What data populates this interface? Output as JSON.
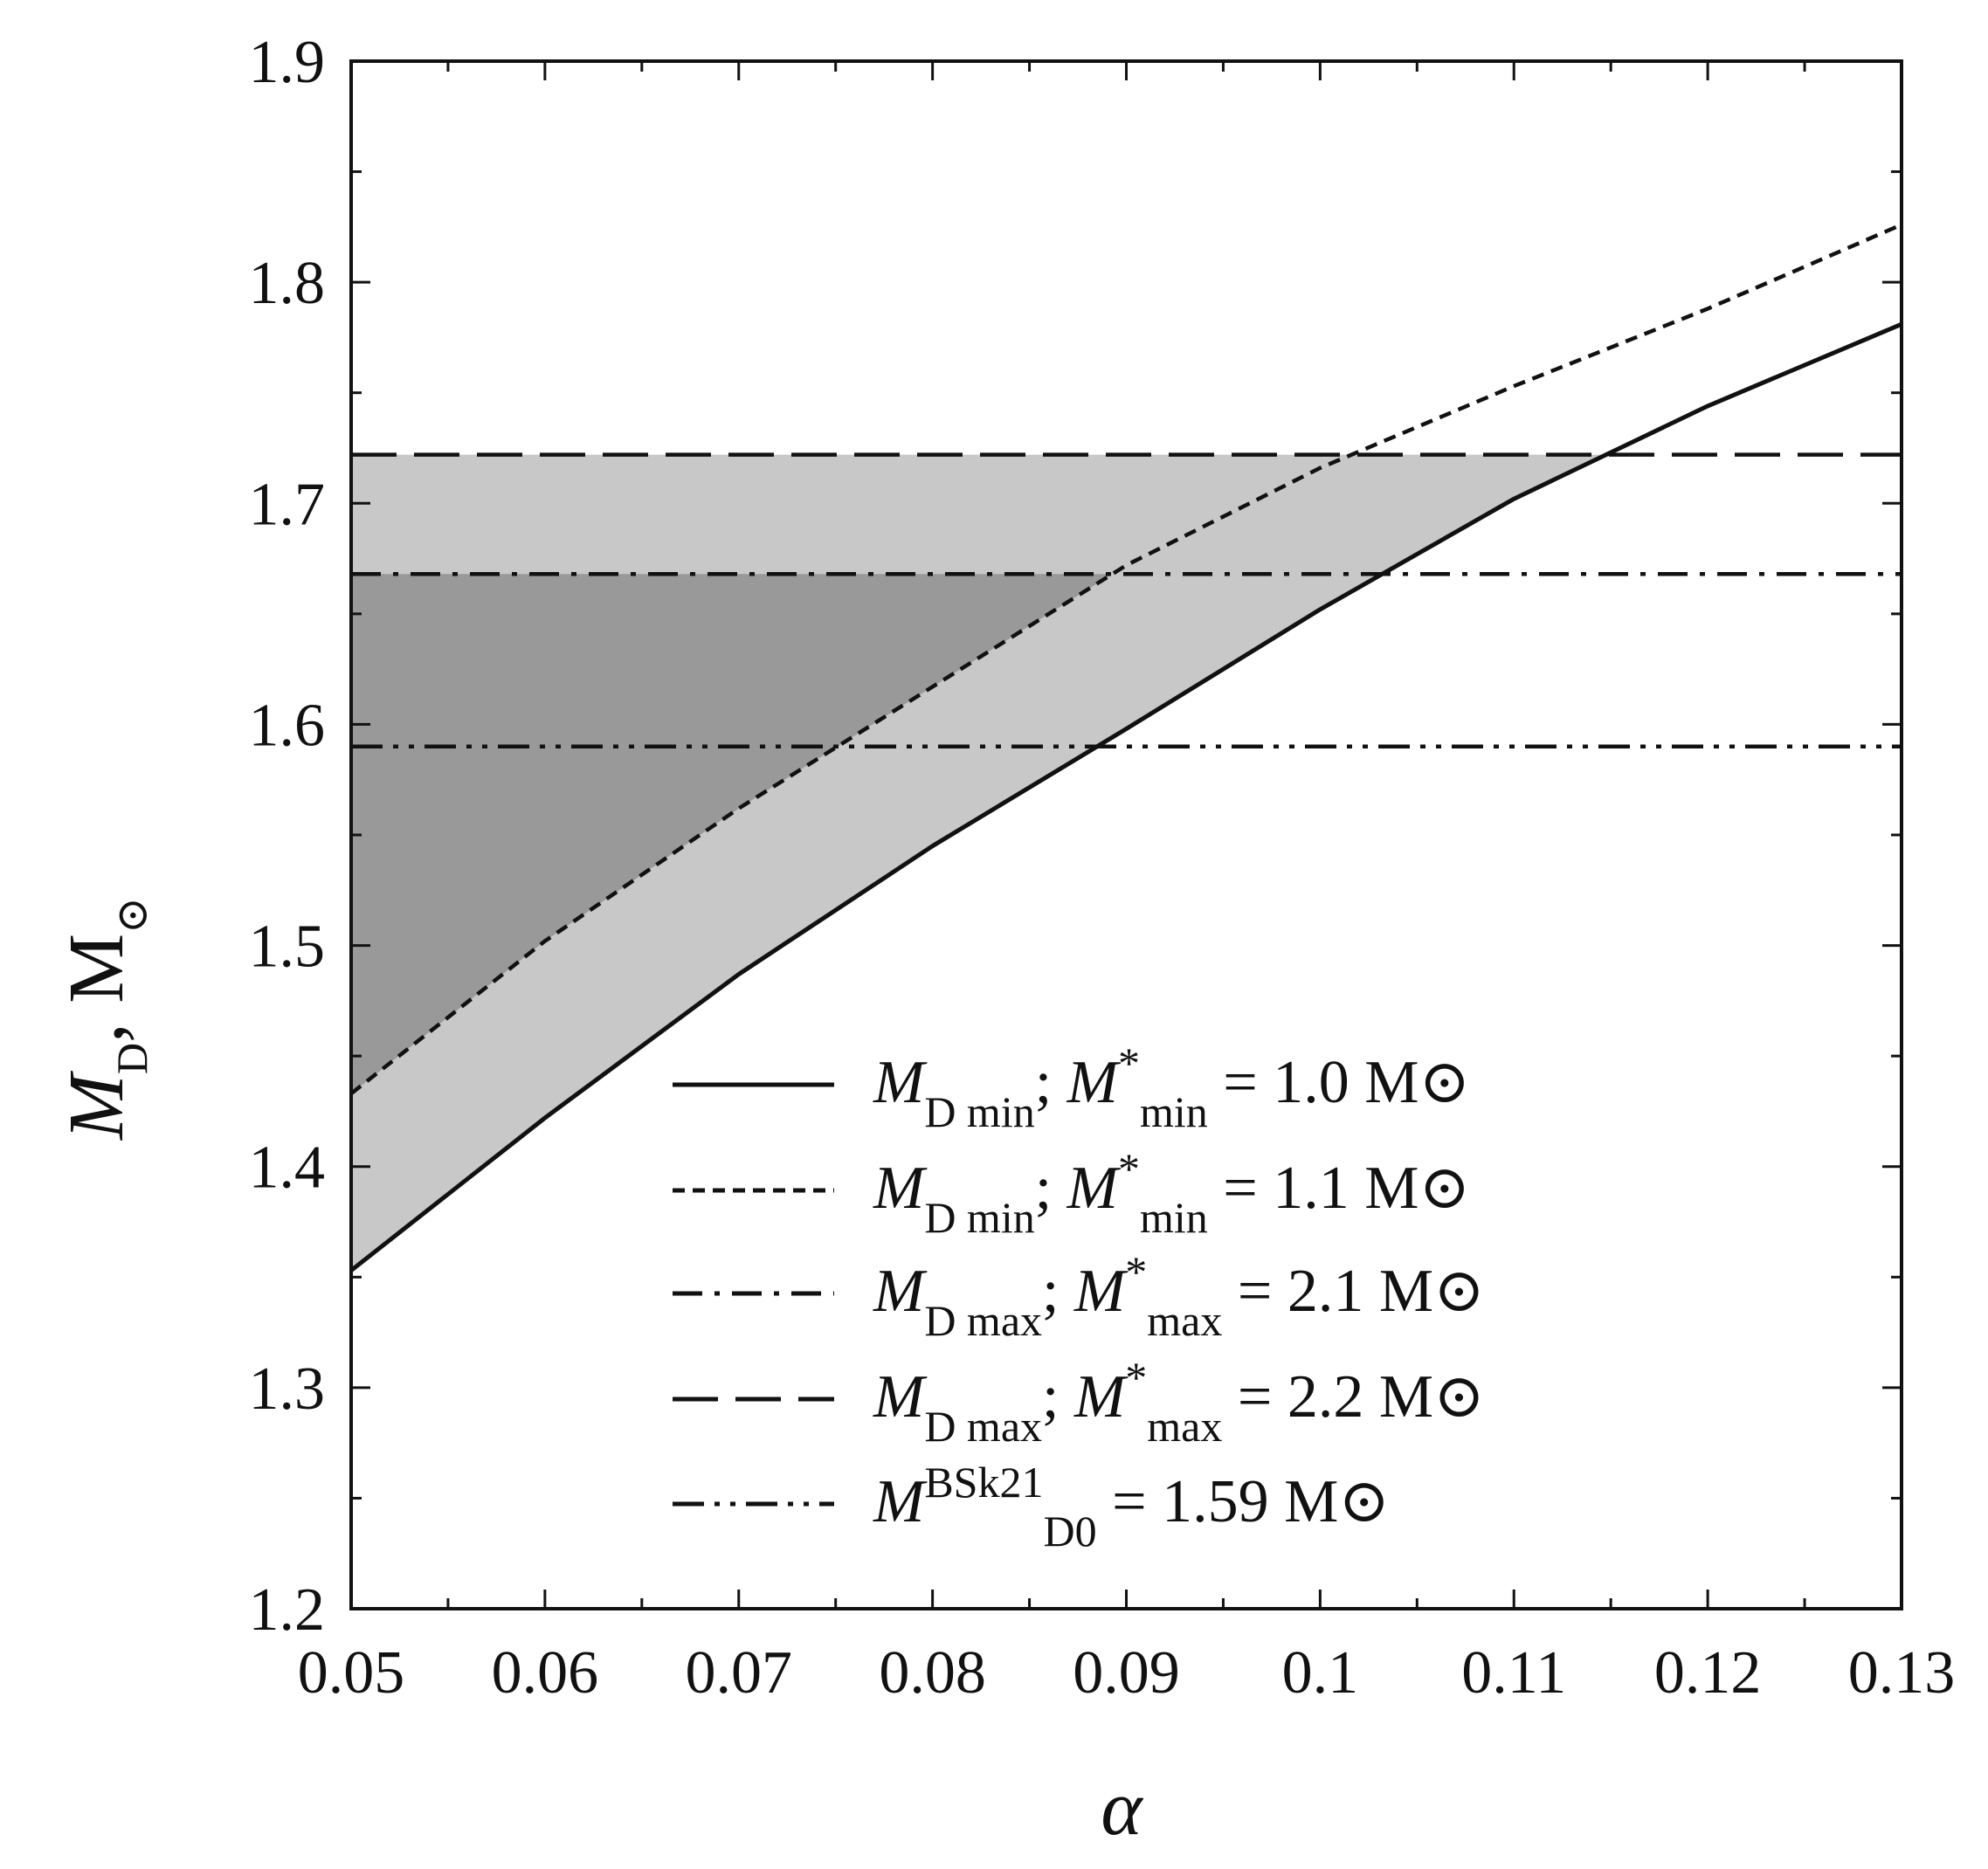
{
  "chart_data": {
    "type": "line",
    "title": "",
    "xlabel": "α",
    "ylabel_parts": {
      "symbol": "M",
      "subscript": "D",
      "unit": ", M",
      "unit_symbol": "⊙"
    },
    "xlim": [
      0.05,
      0.13
    ],
    "ylim": [
      1.2,
      1.9
    ],
    "x_ticks": [
      0.05,
      0.06,
      0.07,
      0.08,
      0.09,
      0.1,
      0.11,
      0.12,
      0.13
    ],
    "x_tick_labels": [
      "0.05",
      "0.06",
      "0.07",
      "0.08",
      "0.09",
      "0.1",
      "0.11",
      "0.12",
      "0.13"
    ],
    "x_minor_step": 0.005,
    "y_ticks": [
      1.2,
      1.3,
      1.4,
      1.5,
      1.6,
      1.7,
      1.8,
      1.9
    ],
    "y_tick_labels": [
      "1.2",
      "1.3",
      "1.4",
      "1.5",
      "1.6",
      "1.7",
      "1.8",
      "1.9"
    ],
    "y_minor_step": 0.05,
    "grid": false,
    "legend_position": "bottom-right",
    "series": [
      {
        "key": "mdmin_10",
        "style": "solid",
        "legend": {
          "main": "M",
          "sub": "D min",
          "mid": "; M",
          "sup": "*",
          "sub2": "min",
          "tail": " = 1.0 M⊙"
        },
        "x": [
          0.05,
          0.06,
          0.07,
          0.08,
          0.09,
          0.1,
          0.11,
          0.12,
          0.13
        ],
        "y": [
          1.353,
          1.422,
          1.487,
          1.545,
          1.598,
          1.652,
          1.702,
          1.744,
          1.781
        ]
      },
      {
        "key": "mdmin_11",
        "style": "dashed",
        "legend": {
          "main": "M",
          "sub": "D min",
          "mid": "; M",
          "sup": "*",
          "sub2": "min",
          "tail": " = 1.1 M⊙"
        },
        "x": [
          0.05,
          0.06,
          0.07,
          0.08,
          0.09,
          0.1,
          0.11,
          0.12,
          0.13
        ],
        "y": [
          1.433,
          1.502,
          1.562,
          1.617,
          1.672,
          1.716,
          1.753,
          1.788,
          1.826
        ]
      },
      {
        "key": "mdmax_21",
        "style": "dashdot",
        "legend": {
          "main": "M",
          "sub": "D max",
          "mid": "; M",
          "sup": "*",
          "sub2": "max",
          "tail": " = 2.1 M⊙"
        },
        "x": [
          0.05,
          0.13
        ],
        "y": [
          1.668,
          1.668
        ]
      },
      {
        "key": "mdmax_22",
        "style": "longdash",
        "legend": {
          "main": "M",
          "sub": "D max",
          "mid": "; M",
          "sup": "*",
          "sub2": "max",
          "tail": " = 2.2 M⊙"
        },
        "x": [
          0.05,
          0.13
        ],
        "y": [
          1.722,
          1.722
        ]
      },
      {
        "key": "md0_bsk21",
        "style": "dashdotdot",
        "legend": {
          "main": "M",
          "sub": "D0",
          "sup": "BSk21",
          "tail": " = 1.59 M⊙"
        },
        "x": [
          0.05,
          0.13
        ],
        "y": [
          1.59,
          1.59
        ]
      }
    ],
    "shaded_regions": [
      {
        "name": "light-band",
        "between": [
          "mdmin_10",
          "mdmax_22"
        ],
        "color": "#c8c8c8"
      },
      {
        "name": "dark-band",
        "between": [
          "mdmin_11",
          "mdmax_21"
        ],
        "color": "#999999"
      }
    ]
  }
}
